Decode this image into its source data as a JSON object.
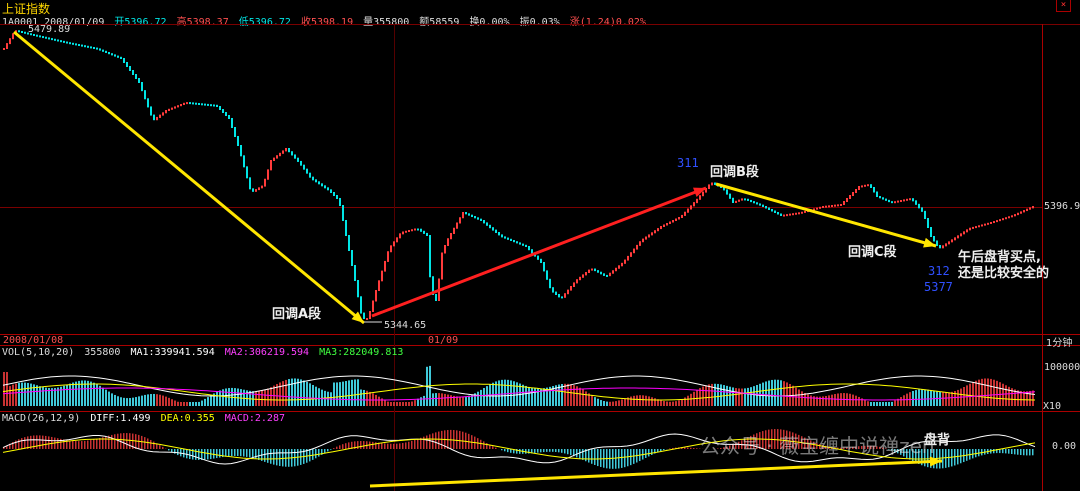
{
  "window": {
    "title": "上证指数",
    "close_icon": "close-icon"
  },
  "quote_bar": {
    "code_date": "1A0001 2008/01/09",
    "open": "开5396.72",
    "high": "高5398.37",
    "low": "低5396.72",
    "close": "收5398.19",
    "volume": "量355800",
    "amount": "额58559",
    "turnover": "换0.00%",
    "amplitude": "振0.03%",
    "change_label": "涨",
    "change_value": "(1.24)0.02%"
  },
  "price_chart": {
    "high_label": "5479.89",
    "low_label": "5344.65",
    "right_price": "5396.9",
    "label_311": "311",
    "label_312": "312",
    "label_5377": "5377"
  },
  "time_axis": {
    "left_date": "2008/01/08",
    "mid_date": "01/09",
    "period": "1分钟"
  },
  "volume_panel": {
    "header_label": "VOL(5,10,20)",
    "header_value": "355800",
    "ma1": "MA1:339941.594",
    "ma2": "MA2:306219.594",
    "ma3": "MA3:282049.813",
    "scale_top": "100000",
    "scale_unit": "X10"
  },
  "macd_panel": {
    "header_label": "MACD(26,12,9)",
    "diff": "DIFF:1.499",
    "dea": "DEA:0.355",
    "macd": "MACD:2.287",
    "scale_zero": "0.00"
  },
  "annotations": {
    "seg_a": "回调A段",
    "seg_b": "回调B段",
    "seg_c": "回调C段",
    "buy_point_line1": "午后盘背买点,",
    "buy_point_line2": "还是比较安全的",
    "divergence": "盘背",
    "watermark": "公众号 · 薇宝缠中说禅zen"
  },
  "colors": {
    "up": "#ff3b3b",
    "down": "#00e5e5",
    "yellow_arrow": "#ffe600",
    "red_arrow": "#ff2020",
    "grid": "#7a0000",
    "ma1": "#ffffff",
    "ma2": "#ffff00",
    "ma3": "#ff00ff"
  }
}
